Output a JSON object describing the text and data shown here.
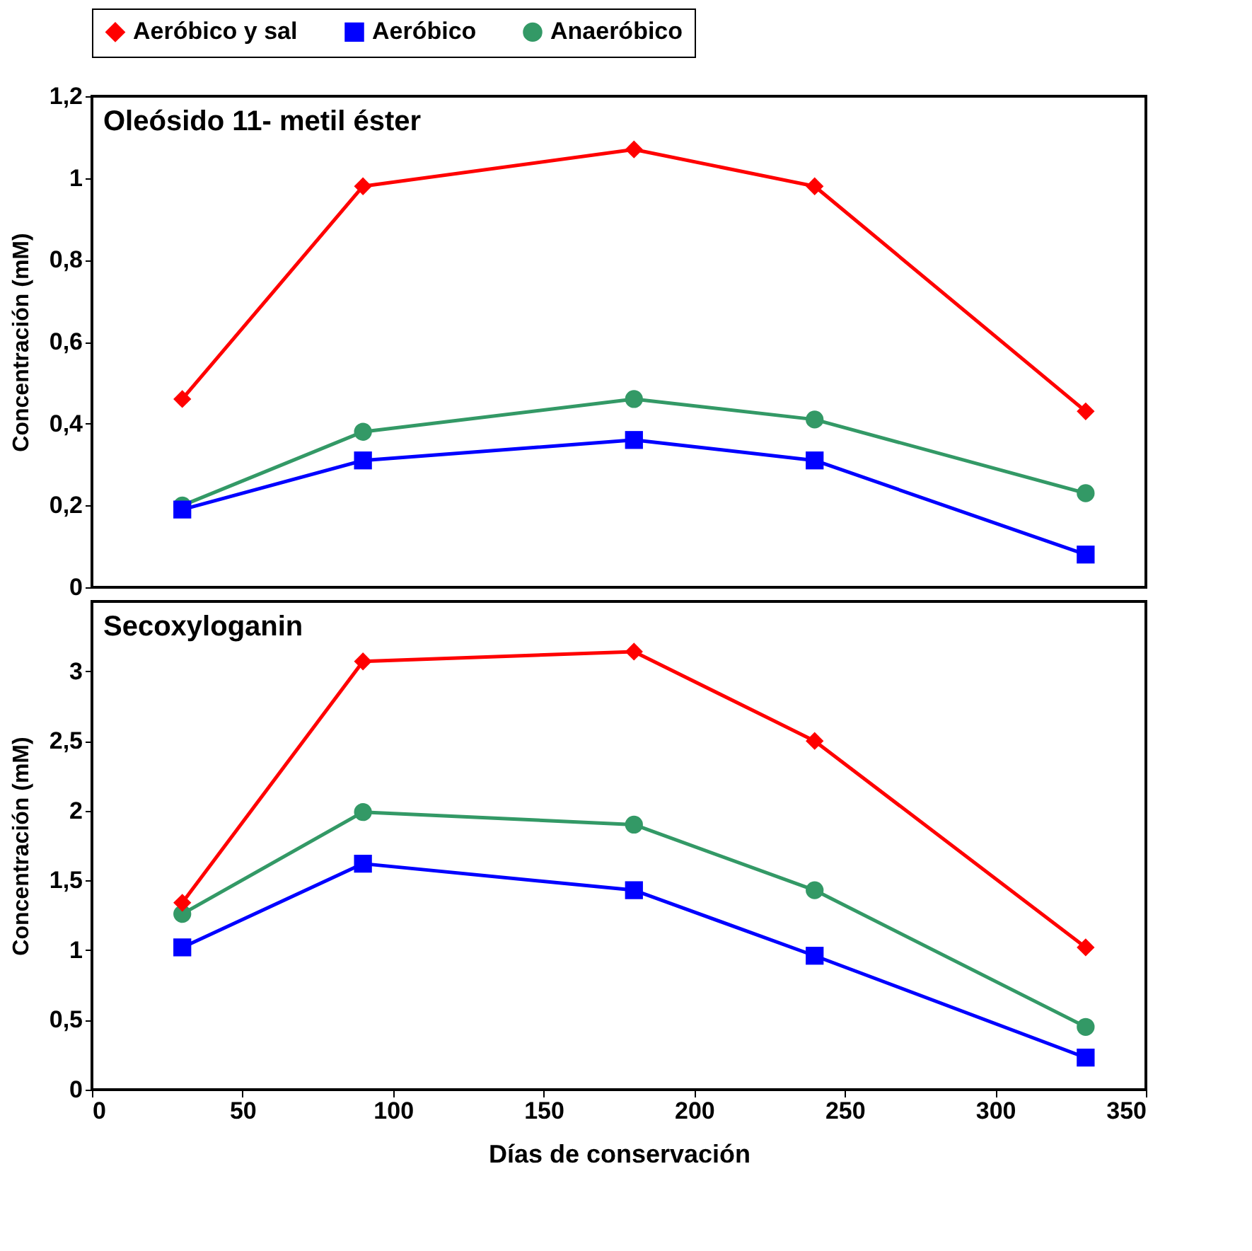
{
  "chart_data": [
    {
      "type": "line",
      "title": "Oleósido 11- metil éster",
      "ylabel": "Concentración (mM)",
      "x": [
        30,
        90,
        180,
        240,
        330
      ],
      "xlim": [
        0,
        350
      ],
      "ylim": [
        0,
        1.2
      ],
      "yticks": [
        0,
        {
          "value": 0.2,
          "label": "0,2"
        },
        {
          "value": 0.4,
          "label": "0,4"
        },
        {
          "value": 0.6,
          "label": "0,6"
        },
        {
          "value": 0.8,
          "label": "0,8"
        },
        1,
        {
          "value": 1.2,
          "label": "1,2"
        }
      ],
      "tick_labels": "y",
      "legend": "top",
      "grid": false,
      "line_style": "solid",
      "series": [
        {
          "name": "Aeróbico y sal",
          "color": "#ff0000",
          "marker": "diamond",
          "values": [
            0.46,
            0.98,
            1.07,
            0.98,
            0.43
          ]
        },
        {
          "name": "Aeróbico",
          "color": "#0000ff",
          "marker": "square",
          "values": [
            0.19,
            0.31,
            0.36,
            0.31,
            0.08
          ]
        },
        {
          "name": "Anaeróbico",
          "color": "#339966",
          "marker": "circle",
          "values": [
            0.2,
            0.38,
            0.46,
            0.41,
            0.23
          ]
        }
      ]
    },
    {
      "type": "line",
      "title": "Secoxyloganin",
      "xlabel": "Días de conservación",
      "ylabel": "Concentración (mM)",
      "x": [
        30,
        90,
        180,
        240,
        330
      ],
      "xlim": [
        0,
        350
      ],
      "xticks": [
        0,
        50,
        100,
        150,
        200,
        250,
        300,
        350
      ],
      "ylim": [
        0,
        3.5
      ],
      "yticks": [
        0,
        {
          "value": 0.5,
          "label": "0,5"
        },
        1,
        {
          "value": 1.5,
          "label": "1,5"
        },
        2,
        {
          "value": 2.5,
          "label": "2,5"
        },
        3
      ],
      "legend": false,
      "grid": false,
      "line_style": "solid",
      "series": [
        {
          "name": "Aeróbico y sal",
          "color": "#ff0000",
          "marker": "diamond",
          "values": [
            1.34,
            3.07,
            3.14,
            2.5,
            1.02
          ]
        },
        {
          "name": "Aeróbico",
          "color": "#0000ff",
          "marker": "square",
          "values": [
            1.02,
            1.62,
            1.43,
            0.96,
            0.23
          ]
        },
        {
          "name": "Anaeróbico",
          "color": "#339966",
          "marker": "circle",
          "values": [
            1.26,
            1.99,
            1.9,
            1.43,
            0.45
          ]
        }
      ]
    }
  ]
}
